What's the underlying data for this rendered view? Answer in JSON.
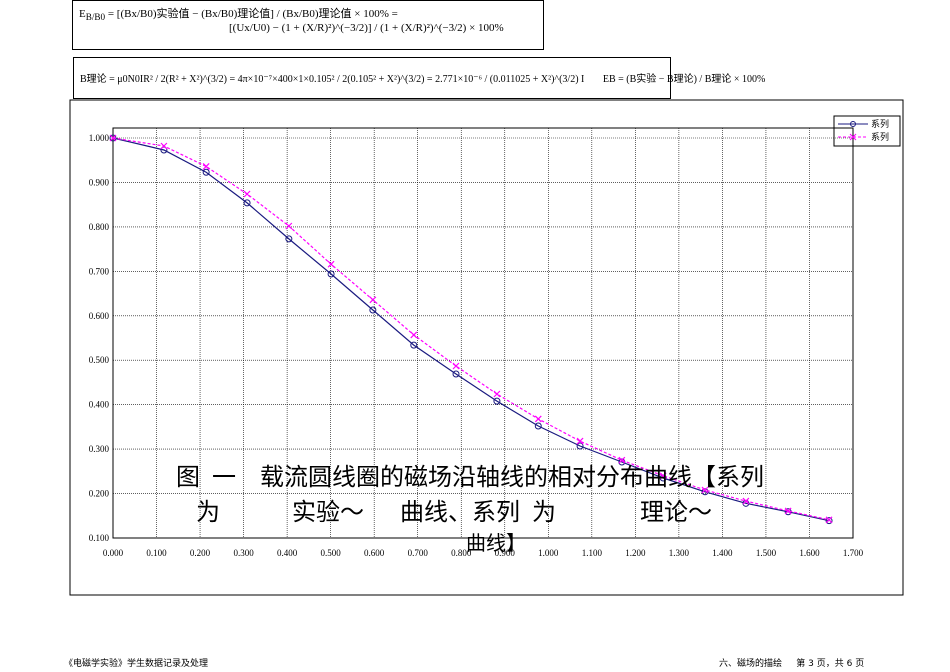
{
  "formulas": {
    "row1": [
      "E",
      "B/B0",
      "= [(Bx/B0)实验值 − (Bx/B0)理论值] / (Bx/B0)理论值 × 100% =",
      "[(Ux/U0) − (1 + (X/R)²)^(−3/2)] / (1 + (X/R)²)^(−3/2) × 100%"
    ],
    "row2": [
      "B理论 = μ0N0IR² / 2(R² + X²)^(3/2) = 4π×10⁻⁷×400×1×0.105² / 2(0.105² + X²)^(3/2) = 2.771×10⁻⁶ / (0.011025 + X²)^(3/2) I",
      "EB = (B实验 − B理论) / B理论 × 100%"
    ]
  },
  "chart_data": {
    "type": "line",
    "x": [
      0,
      0.117,
      0.214,
      0.308,
      0.404,
      0.501,
      0.597,
      0.691,
      0.788,
      0.882,
      0.977,
      1.073,
      1.169,
      1.264,
      1.36,
      1.454,
      1.551,
      1.645
    ],
    "series": [
      {
        "name": "系列",
        "color": "#1a1a80",
        "marker": "circle",
        "dashed": false,
        "values": [
          1.0,
          0.973,
          0.923,
          0.854,
          0.773,
          0.694,
          0.613,
          0.534,
          0.469,
          0.408,
          0.352,
          0.307,
          0.271,
          0.235,
          0.204,
          0.178,
          0.159,
          0.139
        ]
      },
      {
        "name": "系列",
        "color": "#ff00ff",
        "marker": "x",
        "dashed": true,
        "values": [
          1.0,
          0.982,
          0.936,
          0.874,
          0.802,
          0.716,
          0.636,
          0.557,
          0.487,
          0.424,
          0.368,
          0.318,
          0.275,
          0.24,
          0.208,
          0.183,
          0.161,
          0.141
        ]
      }
    ],
    "xlim": [
      0,
      1.7
    ],
    "xticks": [
      {
        "value": 0,
        "label": "0.000"
      },
      {
        "value": 0.1,
        "label": "0.100"
      },
      {
        "value": 0.2,
        "label": "0.200"
      },
      {
        "value": 0.3,
        "label": "0.300"
      },
      {
        "value": 0.4,
        "label": "0.400"
      },
      {
        "value": 0.5,
        "label": "0.500"
      },
      {
        "value": 0.6,
        "label": "0.600"
      },
      {
        "value": 0.7,
        "label": "0.700"
      },
      {
        "value": 0.8,
        "label": "0.800"
      },
      {
        "value": 0.9,
        "label": "0.900"
      },
      {
        "value": 1,
        "label": "1.000"
      },
      {
        "value": 1.1,
        "label": "1.100"
      },
      {
        "value": 1.2,
        "label": "1.200"
      },
      {
        "value": 1.3,
        "label": "1.300"
      },
      {
        "value": 1.4,
        "label": "1.400"
      },
      {
        "value": 1.5,
        "label": "1.500"
      },
      {
        "value": 1.6,
        "label": "1.600"
      },
      {
        "value": 1.7,
        "label": "1.700"
      }
    ],
    "ylim": [
      0.1,
      1.0
    ],
    "yticks": [
      {
        "value": 0.1,
        "label": "0.100"
      },
      {
        "value": 0.2,
        "label": "0.200"
      },
      {
        "value": 0.3,
        "label": "0.300"
      },
      {
        "value": 0.4,
        "label": "0.400"
      },
      {
        "value": 0.5,
        "label": "0.500"
      },
      {
        "value": 0.6,
        "label": "0.600"
      },
      {
        "value": 0.7,
        "label": "0.700"
      },
      {
        "value": 0.8,
        "label": "0.800"
      },
      {
        "value": 0.9,
        "label": "0.900"
      },
      {
        "value": 1.0,
        "label": "1.000"
      }
    ],
    "grid": true,
    "legend": "top-right",
    "caption": [
      "图  一    载流圆线圈的磁场沿轴线的相对分布曲线【系列",
      "为            实验～      曲线、系列  为              理论～",
      "曲线】"
    ]
  },
  "footer": {
    "left": "《电磁学实验》学生数据记录及处理",
    "right": "六、磁场的描绘     第 3 页，共 6 页"
  }
}
